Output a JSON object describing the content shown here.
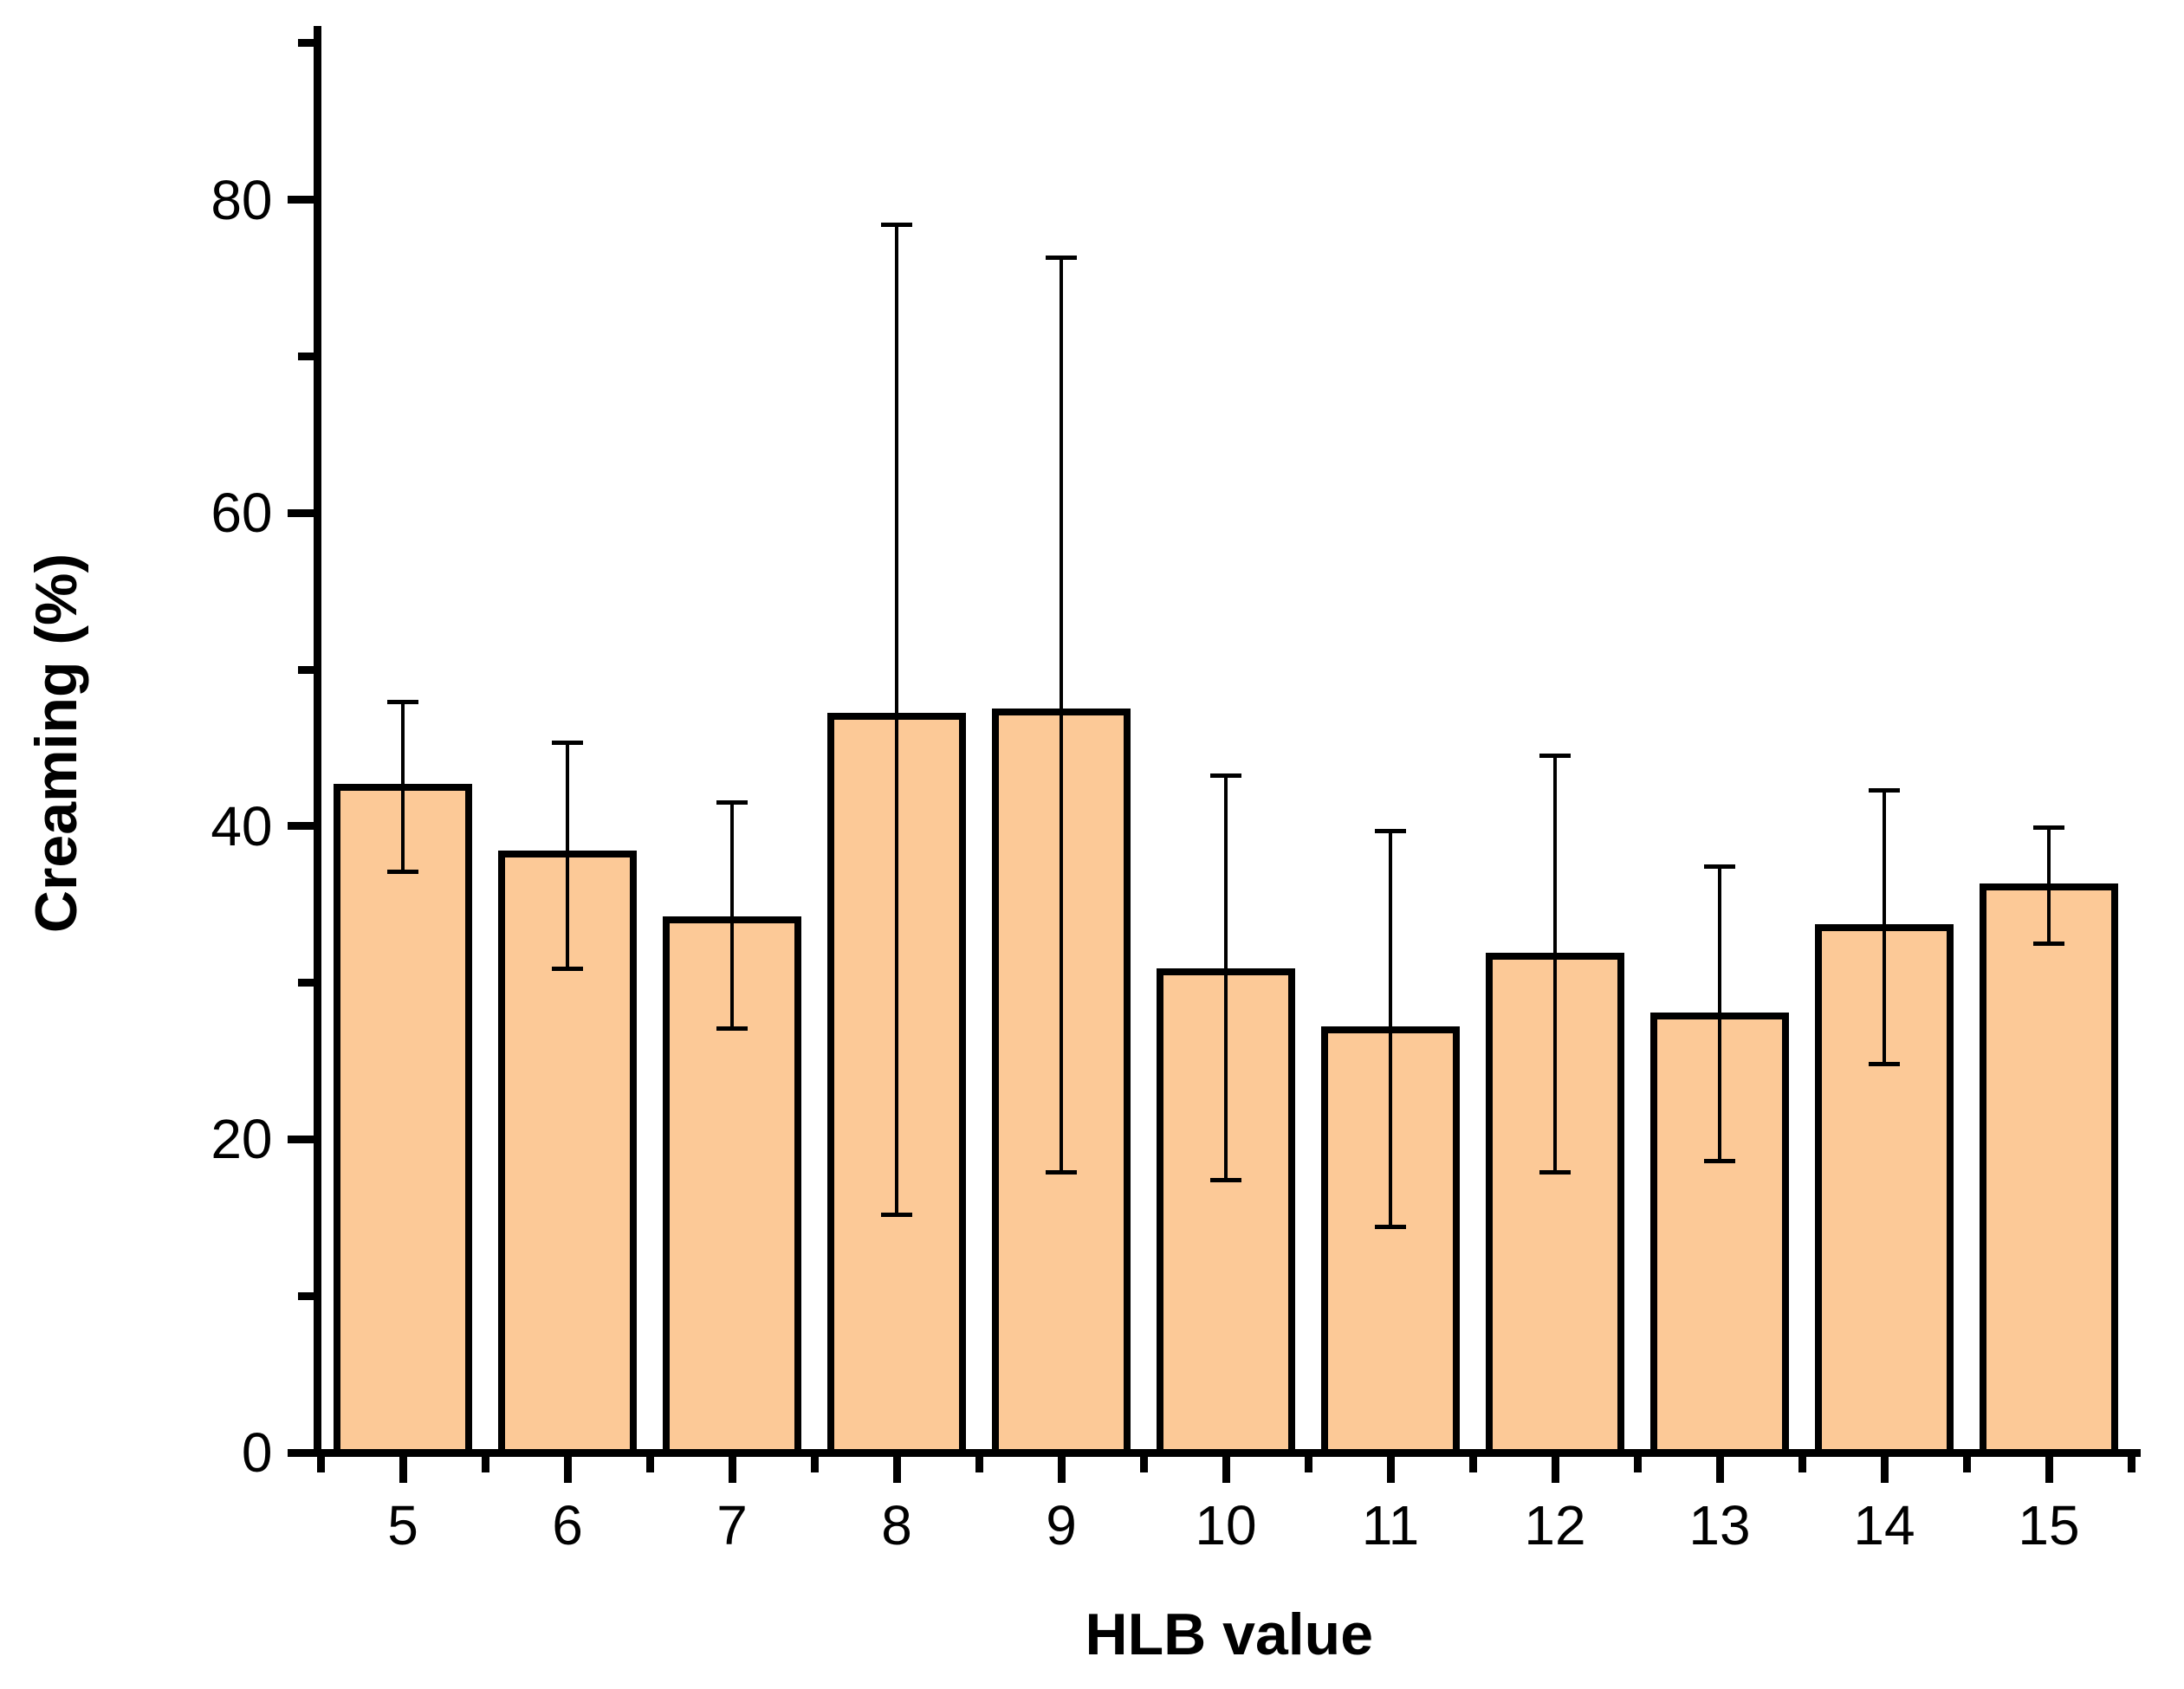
{
  "figure": {
    "background": "#ffffff",
    "xlabel": "HLB value",
    "ylabel": "Creaming (%)"
  },
  "chart_data": {
    "type": "bar",
    "title": "",
    "xlabel": "HLB value",
    "ylabel": "Creaming (%)",
    "categories": [
      5,
      6,
      7,
      8,
      9,
      10,
      11,
      12,
      13,
      14,
      15
    ],
    "series": [
      {
        "name": "Creaming (%)",
        "values": [
          42.5,
          38.2,
          34.0,
          47.0,
          47.3,
          30.7,
          27.0,
          31.7,
          27.9,
          33.5,
          36.1
        ],
        "error_upper_cap": [
          47.9,
          45.3,
          41.5,
          78.4,
          76.3,
          43.2,
          39.7,
          44.5,
          37.4,
          42.3,
          39.9
        ],
        "error_lower_cap": [
          37.1,
          30.9,
          27.1,
          15.2,
          17.9,
          17.4,
          14.4,
          17.9,
          18.6,
          24.8,
          32.5
        ]
      }
    ],
    "y_ticks": [
      0,
      20,
      40,
      60,
      80
    ],
    "y_tick_labels": [
      "0",
      "20",
      "40",
      "60",
      "80"
    ],
    "y_minor_ticks": [
      10,
      30,
      50,
      70,
      90
    ],
    "x_tick_labels": [
      "5",
      "6",
      "7",
      "8",
      "9",
      "10",
      "11",
      "12",
      "13",
      "14",
      "15"
    ],
    "x_minor_ticks": [
      4.5,
      5.5,
      6.5,
      7.5,
      8.5,
      9.5,
      10.5,
      11.5,
      12.5,
      13.5,
      14.5,
      15.5
    ],
    "ylim": [
      0,
      91
    ],
    "xlim": [
      4.5,
      15.5
    ],
    "grid": false,
    "legend_position": "none",
    "bar_fill_color": "#FCC997",
    "bar_outline_color": "#000000",
    "error_bar_color": "#000000"
  }
}
